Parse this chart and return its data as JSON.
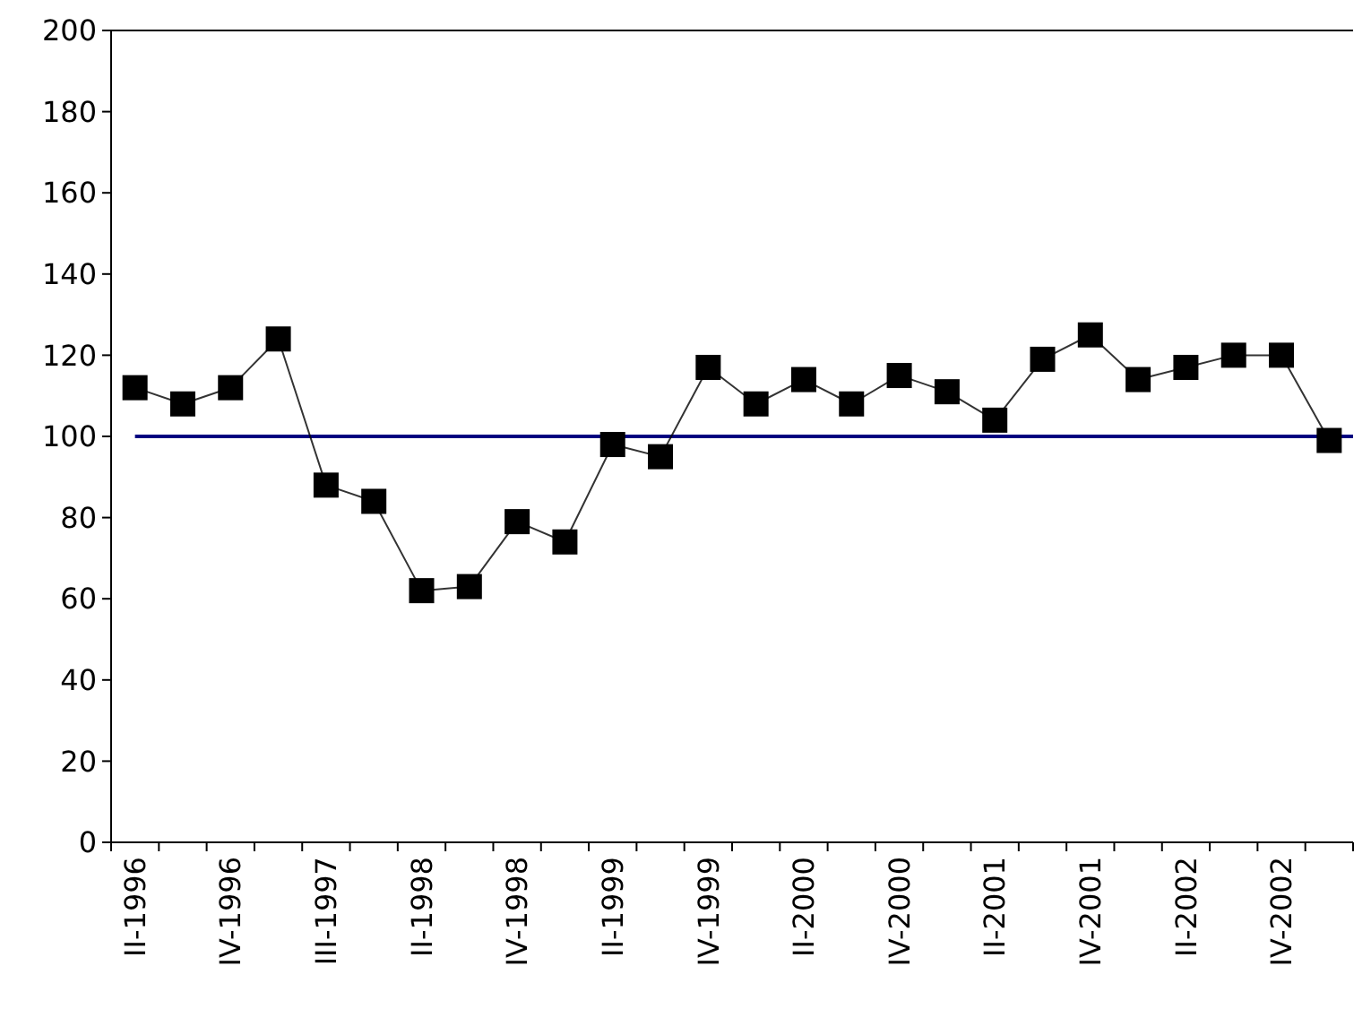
{
  "chart_data": {
    "type": "line",
    "categories": [
      "II-1996",
      null,
      "IV-1996",
      null,
      "III-1997",
      null,
      "II-1998",
      null,
      "IV-1998",
      null,
      "II-1999",
      null,
      "IV-1999",
      null,
      "II-2000",
      null,
      "IV-2000",
      null,
      "II-2001",
      null,
      "IV-2001",
      null,
      "II-2002",
      null,
      "IV-2002",
      null
    ],
    "series": [
      {
        "color": "#000000",
        "values": [
          112,
          108,
          112,
          124,
          88,
          84,
          62,
          63,
          79,
          74,
          98,
          95,
          117,
          108,
          114,
          108,
          115,
          111,
          104,
          119,
          125,
          114,
          117,
          120,
          120,
          99
        ]
      }
    ],
    "ylim": [
      0,
      200
    ],
    "yticks": [
      0,
      20,
      40,
      60,
      80,
      100,
      120,
      140,
      160,
      180,
      200
    ],
    "ref_lines": [
      {
        "axis": "y",
        "value": 100,
        "color": "#000080"
      }
    ],
    "marker": "square",
    "grid": false
  }
}
